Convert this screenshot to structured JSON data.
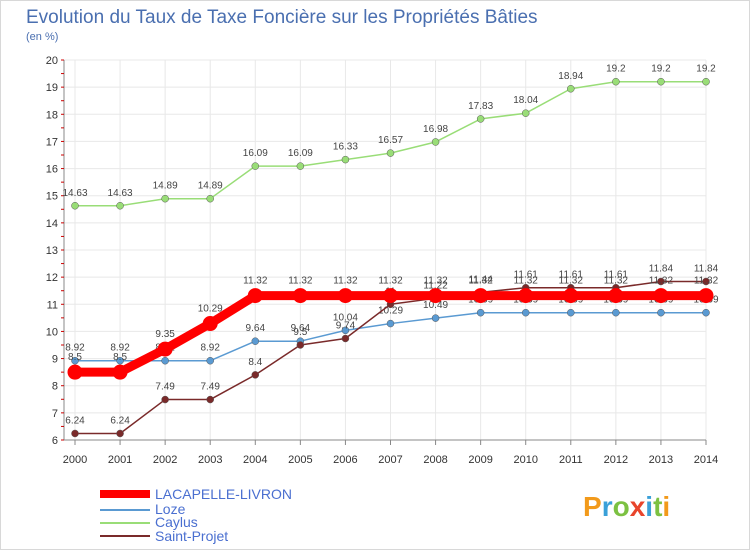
{
  "chart_data": {
    "type": "line",
    "title": "Evolution du Taux de Taxe Foncière sur les Propriétés Bâties",
    "ylabel": "(en %)",
    "xlabel": "",
    "ylim": [
      6,
      20
    ],
    "yticks": [
      6,
      7,
      8,
      9,
      10,
      11,
      12,
      13,
      14,
      15,
      16,
      17,
      18,
      19,
      20
    ],
    "x": [
      "2000",
      "2001",
      "2002",
      "2003",
      "2004",
      "2005",
      "2006",
      "2007",
      "2008",
      "2009",
      "2010",
      "2011",
      "2012",
      "2013",
      "2014"
    ],
    "grid": true,
    "series": [
      {
        "name": "LACAPELLE-LIVRON",
        "color": "#ff0000",
        "width": "thick",
        "values": [
          8.5,
          8.5,
          9.35,
          10.29,
          11.32,
          11.32,
          11.32,
          11.32,
          11.32,
          11.32,
          11.32,
          11.32,
          11.32,
          11.32,
          11.32
        ]
      },
      {
        "name": "Loze",
        "color": "#5a9ad2",
        "width": "thin",
        "values": [
          8.92,
          8.92,
          8.92,
          8.92,
          9.64,
          9.64,
          10.04,
          10.29,
          10.49,
          10.69,
          10.69,
          10.69,
          10.69,
          10.69,
          10.69
        ]
      },
      {
        "name": "Caylus",
        "color": "#99dd77",
        "width": "thin",
        "values": [
          14.63,
          14.63,
          14.89,
          14.89,
          16.09,
          16.09,
          16.33,
          16.57,
          16.98,
          17.83,
          18.04,
          18.94,
          19.2,
          19.2,
          19.2
        ]
      },
      {
        "name": "Saint-Projet",
        "color": "#7a2a2a",
        "width": "thin",
        "values": [
          6.24,
          6.24,
          7.49,
          7.49,
          8.4,
          9.5,
          9.74,
          11.0,
          11.22,
          11.44,
          11.61,
          11.61,
          11.61,
          11.84,
          11.84
        ]
      }
    ]
  },
  "legend": [
    "LACAPELLE-LIVRON",
    "Loze",
    "Caylus",
    "Saint-Projet"
  ],
  "brand": "Proxiti"
}
